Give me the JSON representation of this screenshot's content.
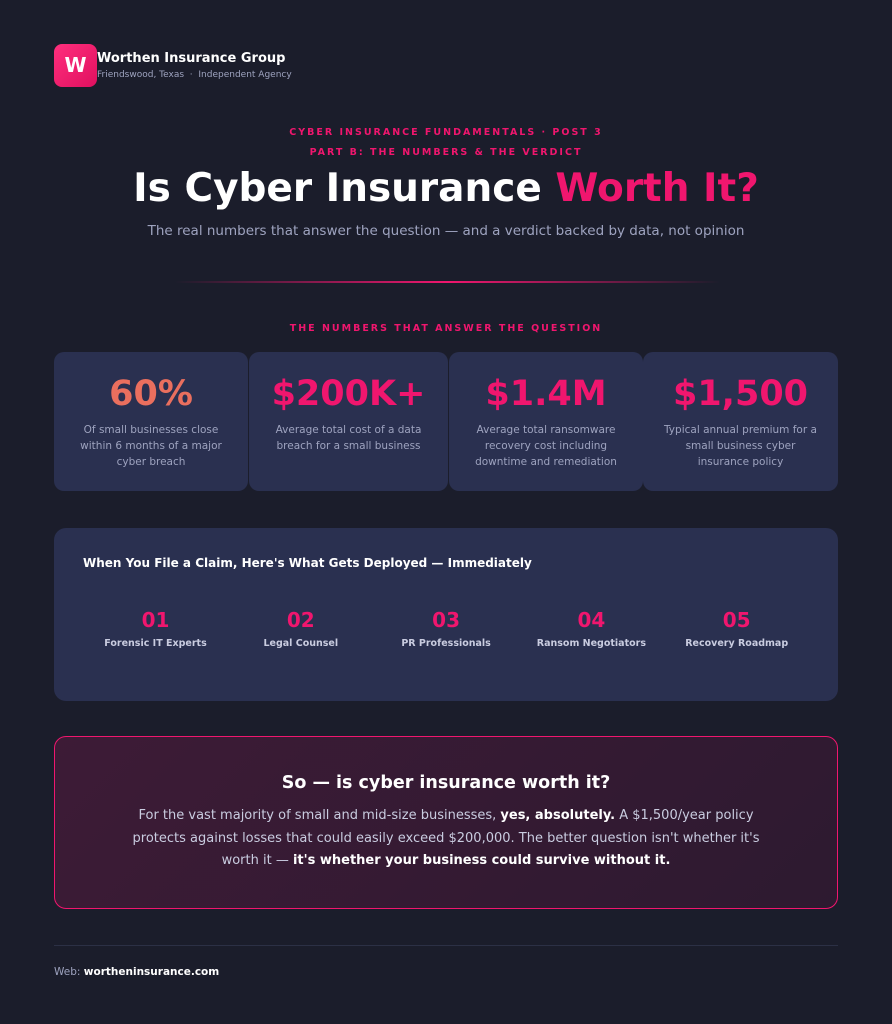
{
  "header": {
    "logo": "W",
    "name": "Worthen Insurance Group",
    "location": "Friendswood, Texas",
    "agency_type": "Independent Agency"
  },
  "hero": {
    "eyebrow": "CYBER INSURANCE FUNDAMENTALS · POST 3",
    "part": "PART B: THE NUMBERS & THE VERDICT",
    "title": "Is Cyber Insurance",
    "title_highlight": "Worth It?",
    "subtitle": "The real numbers that answer the question — and a verdict backed by data, not opinion"
  },
  "stats": {
    "label": "THE NUMBERS THAT ANSWER THE QUESTION",
    "items": [
      {
        "value": "60%",
        "description": "Of small businesses close within 6 months of a major cyber breach"
      },
      {
        "value": "$200K+",
        "description": "Average total cost of a data breach for a small business"
      },
      {
        "value": "$1.4M",
        "description": "Average total ransomware recovery cost including downtime and remediation"
      },
      {
        "value": "$1,500",
        "description": "Typical annual premium for a small business cyber insurance policy"
      }
    ]
  },
  "claim": {
    "title": "When You File a Claim, Here's What Gets Deployed — Immediately",
    "steps": [
      {
        "number": "01",
        "label": "Forensic IT Experts"
      },
      {
        "number": "02",
        "label": "Legal Counsel"
      },
      {
        "number": "03",
        "label": "PR Professionals"
      },
      {
        "number": "04",
        "label": "Ransom Negotiators"
      },
      {
        "number": "05",
        "label": "Recovery Roadmap"
      }
    ]
  },
  "verdict": {
    "title": "So — is cyber insurance worth it?",
    "body": [
      "For the vast majority of small and mid-size businesses, ",
      "yes, absolutely.",
      " A $1,500/year policy protects against losses that could easily exceed $200,000. The better question isn't whether it's worth it — ",
      "it's whether your business could survive without it."
    ]
  },
  "footer": {
    "label": "Web:",
    "url": "wortheninsurance.com"
  }
}
